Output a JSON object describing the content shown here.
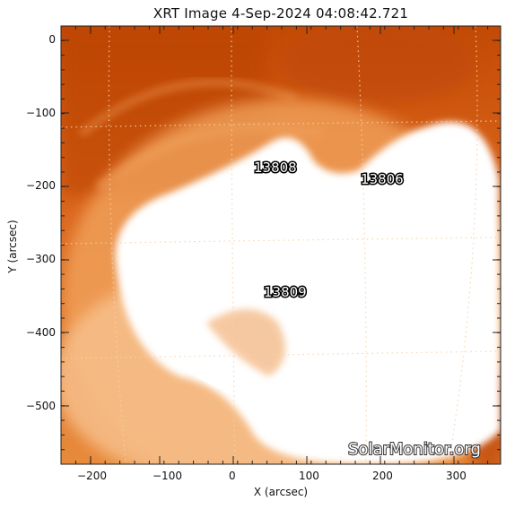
{
  "title": "XRT Image   4-Sep-2024 04:08:42.721",
  "xlabel": "X (arcsec)",
  "ylabel": "Y (arcsec)",
  "x_ticks": [
    "−200",
    "−100",
    "0",
    "100",
    "200",
    "300"
  ],
  "y_ticks": [
    "0",
    "−100",
    "−200",
    "−300",
    "−400",
    "−500"
  ],
  "regions": [
    "13808",
    "13806",
    "13809"
  ],
  "watermark": "SolarMonitor.org",
  "colors": {
    "background_dark": "#c24a05",
    "background_mid": "#e27a26",
    "saturated": "#ffffff",
    "grid": "#f6d2a8"
  }
}
